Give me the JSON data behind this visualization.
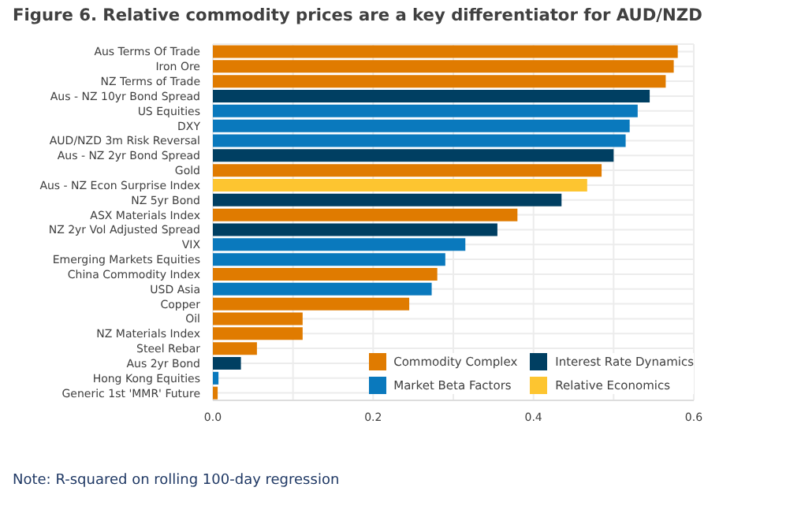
{
  "chart_data": {
    "type": "bar",
    "orientation": "horizontal",
    "stacked": true,
    "title": "Figure 6. Relative commodity prices are a key differentiator for AUD/NZD",
    "categories": [
      "Aus Terms Of Trade",
      "Iron Ore",
      "NZ Terms of Trade",
      "Aus - NZ 10yr Bond Spread",
      "US Equities",
      "DXY",
      "AUD/NZD 3m Risk Reversal",
      "Aus - NZ 2yr Bond Spread",
      "Gold",
      "Aus - NZ Econ Surprise Index",
      "NZ 5yr Bond",
      "ASX Materials Index",
      "NZ 2yr Vol Adjusted Spread",
      "VIX",
      "Emerging Markets Equities",
      "China Commodity Index",
      "USD Asia",
      "Copper",
      "Oil",
      "NZ Materials Index",
      "Steel Rebar",
      "Aus 2yr Bond",
      "Hong Kong Equities",
      "Generic 1st 'MMR' Future"
    ],
    "series": [
      {
        "name": "Commodity Complex",
        "color": "#e07b00",
        "values": [
          0.58,
          0.575,
          0.565,
          null,
          null,
          null,
          null,
          null,
          0.485,
          null,
          null,
          0.38,
          null,
          null,
          null,
          0.28,
          null,
          0.245,
          0.112,
          0.112,
          0.055,
          null,
          null,
          0.006
        ]
      },
      {
        "name": "Interest Rate Dynamics",
        "color": "#003f62",
        "values": [
          null,
          null,
          null,
          0.545,
          null,
          null,
          null,
          0.5,
          null,
          null,
          0.435,
          null,
          0.355,
          null,
          null,
          null,
          null,
          null,
          null,
          null,
          null,
          0.035,
          null,
          null
        ]
      },
      {
        "name": "Market Beta Factors",
        "color": "#0a79bd",
        "values": [
          null,
          null,
          null,
          null,
          0.53,
          0.52,
          0.515,
          null,
          null,
          null,
          null,
          null,
          null,
          0.315,
          0.29,
          null,
          0.273,
          null,
          null,
          null,
          null,
          null,
          0.007,
          null
        ]
      },
      {
        "name": "Relative Economics",
        "color": "#fdc530",
        "values": [
          null,
          null,
          null,
          null,
          null,
          null,
          null,
          null,
          null,
          0.467,
          null,
          null,
          null,
          null,
          null,
          null,
          null,
          null,
          null,
          null,
          null,
          null,
          null,
          null
        ]
      }
    ],
    "xlim": [
      0,
      0.6
    ],
    "xticks": [
      {
        "value": 0,
        "label": "0.0"
      },
      {
        "value": 0.1,
        "label": null
      },
      0.2,
      {
        "value": 0.3,
        "label": null
      },
      0.4,
      {
        "value": 0.5,
        "label": null
      },
      0.6
    ],
    "grid": true,
    "legend": "bottom right",
    "annotations": [
      "Note: R-squared on rolling 100-day regression"
    ]
  }
}
